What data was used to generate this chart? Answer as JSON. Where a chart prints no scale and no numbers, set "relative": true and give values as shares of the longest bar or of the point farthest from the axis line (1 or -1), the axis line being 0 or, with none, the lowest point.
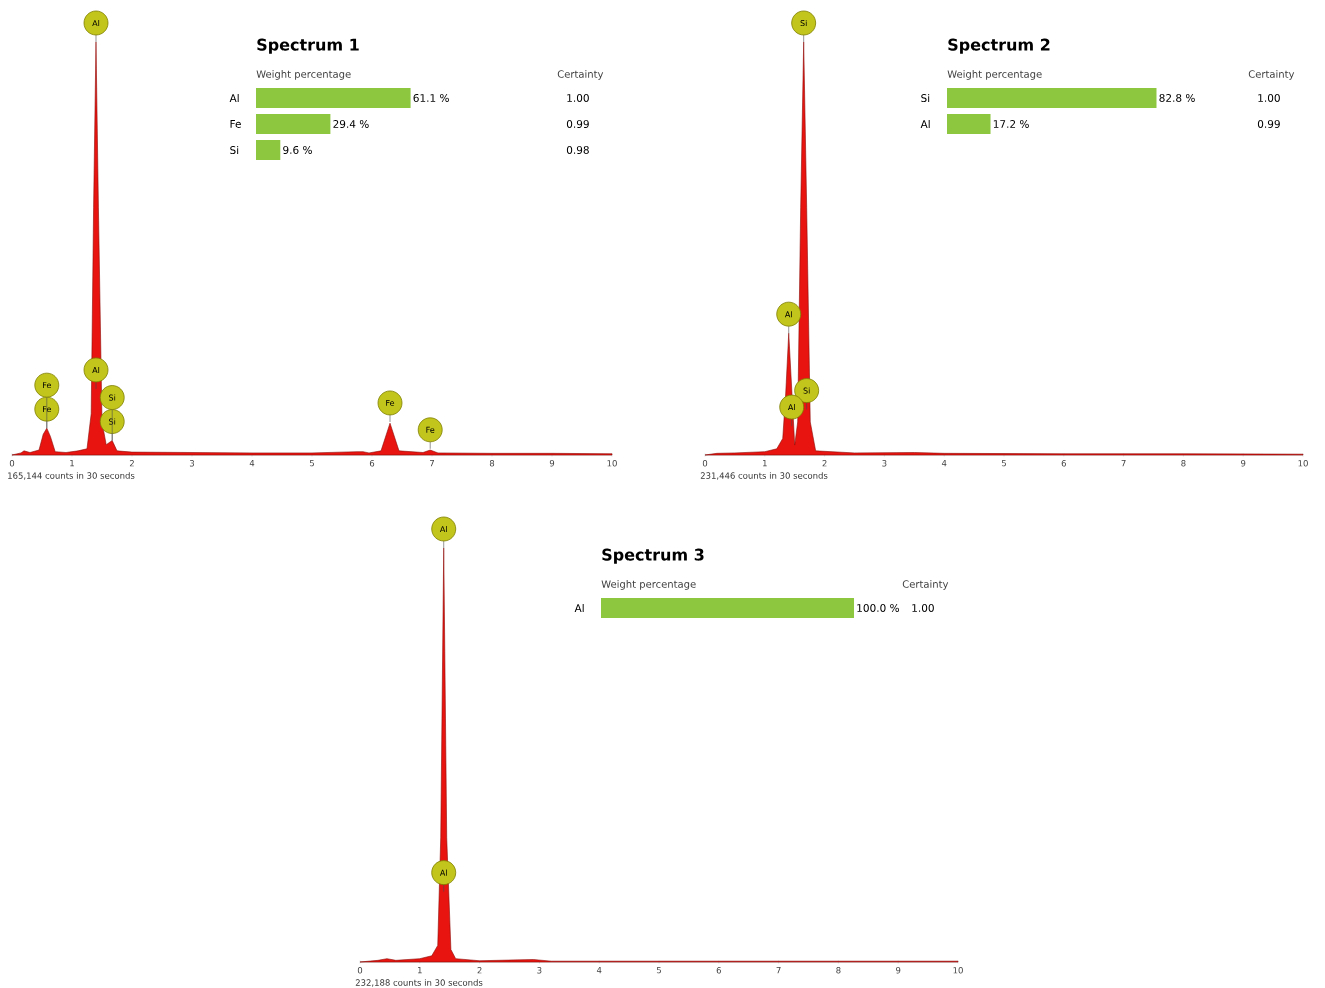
{
  "chart_data": [
    {
      "type": "area",
      "relative": true,
      "xlim": [
        0,
        10
      ],
      "xticks": [
        0,
        1,
        2,
        3,
        4,
        5,
        6,
        7,
        8,
        9,
        10
      ],
      "xlabel": "165,144 counts in 30 seconds",
      "color": "#e8140f",
      "x": [
        0,
        0.15,
        0.2,
        0.3,
        0.45,
        0.52,
        0.58,
        0.64,
        0.72,
        0.9,
        1.1,
        1.25,
        1.32,
        1.36,
        1.4,
        1.44,
        1.5,
        1.57,
        1.67,
        1.75,
        2.0,
        3,
        4,
        5,
        5.75,
        5.85,
        5.95,
        6.15,
        6.3,
        6.45,
        6.85,
        6.97,
        7.1,
        8,
        9,
        10
      ],
      "values": [
        0,
        0.005,
        0.01,
        0.006,
        0.012,
        0.05,
        0.065,
        0.045,
        0.008,
        0.006,
        0.01,
        0.015,
        0.1,
        0.6,
        1.0,
        0.6,
        0.08,
        0.025,
        0.035,
        0.01,
        0.007,
        0.006,
        0.005,
        0.005,
        0.008,
        0.008,
        0.005,
        0.01,
        0.077,
        0.01,
        0.006,
        0.012,
        0.005,
        0.004,
        0.004,
        0.003
      ],
      "annotations": [
        {
          "text": "Al",
          "x": 1.4,
          "y": 1.0
        },
        {
          "text": "Fe",
          "x": 0.58,
          "y": 0.065
        },
        {
          "text": "Fe",
          "x": 0.58,
          "y": 0.065
        },
        {
          "text": "Al",
          "x": 1.4,
          "y": 0.16
        },
        {
          "text": "Si",
          "x": 1.67,
          "y": 0.035
        },
        {
          "text": "Si",
          "x": 1.67,
          "y": 0.035
        },
        {
          "text": "Fe",
          "x": 6.3,
          "y": 0.08
        },
        {
          "text": "Fe",
          "x": 6.97,
          "y": 0.015
        }
      ]
    },
    {
      "type": "bar",
      "orientation": "horizontal",
      "title": "Spectrum 1",
      "xlabel": "Weight percentage",
      "categories": [
        "Al",
        "Fe",
        "Si"
      ],
      "values": [
        61.1,
        29.4,
        9.6
      ],
      "value_labels": [
        "61.1 %",
        "29.4 %",
        "9.6 %"
      ],
      "color": "#8dc63f",
      "tick_labels": "y",
      "annotations": [
        "Certainty",
        "1.00",
        "0.99",
        "0.98"
      ]
    },
    {
      "type": "area",
      "relative": true,
      "xlim": [
        0,
        10
      ],
      "xticks": [
        0,
        1,
        2,
        3,
        4,
        5,
        6,
        7,
        8,
        9,
        10
      ],
      "xlabel": "231,446 counts in 30 seconds",
      "color": "#e8140f",
      "x": [
        0,
        0.2,
        0.5,
        1.0,
        1.2,
        1.3,
        1.35,
        1.4,
        1.5,
        1.55,
        1.6,
        1.65,
        1.7,
        1.76,
        1.85,
        2.5,
        3.5,
        4,
        6,
        8,
        10
      ],
      "values": [
        0,
        0.004,
        0.005,
        0.008,
        0.015,
        0.04,
        0.15,
        0.295,
        0.024,
        0.08,
        0.6,
        1.0,
        0.6,
        0.08,
        0.01,
        0.005,
        0.006,
        0.004,
        0.003,
        0.003,
        0.002
      ],
      "annotations": [
        {
          "text": "Si",
          "x": 1.65,
          "y": 1.0
        },
        {
          "text": "Al",
          "x": 1.4,
          "y": 0.295
        },
        {
          "text": "Si",
          "x": 1.7,
          "y": 0.11
        },
        {
          "text": "Al",
          "x": 1.45,
          "y": 0.07
        }
      ]
    },
    {
      "type": "bar",
      "orientation": "horizontal",
      "title": "Spectrum 2",
      "xlabel": "Weight percentage",
      "categories": [
        "Si",
        "Al"
      ],
      "values": [
        82.8,
        17.2
      ],
      "value_labels": [
        "82.8 %",
        "17.2 %"
      ],
      "color": "#8dc63f",
      "tick_labels": "y",
      "annotations": [
        "Certainty",
        "1.00",
        "0.99"
      ]
    },
    {
      "type": "area",
      "relative": true,
      "xlim": [
        0,
        10
      ],
      "xticks": [
        0,
        1,
        2,
        3,
        4,
        5,
        6,
        7,
        8,
        9,
        10
      ],
      "xlabel": "232,188 counts in 30 seconds",
      "color": "#e8140f",
      "x": [
        0,
        0.3,
        0.45,
        0.6,
        1.0,
        1.2,
        1.3,
        1.35,
        1.4,
        1.45,
        1.52,
        1.6,
        2,
        2.9,
        3.2,
        6,
        10
      ],
      "values": [
        0,
        0.004,
        0.008,
        0.004,
        0.008,
        0.015,
        0.04,
        0.3,
        1.0,
        0.3,
        0.03,
        0.008,
        0.003,
        0.006,
        0.002,
        0.002,
        0.002
      ],
      "annotations": [
        {
          "text": "Al",
          "x": 1.4,
          "y": 1.0
        },
        {
          "text": "Al",
          "x": 1.4,
          "y": 0.17
        }
      ]
    },
    {
      "type": "bar",
      "orientation": "horizontal",
      "title": "Spectrum 3",
      "xlabel": "Weight percentage",
      "categories": [
        "Al"
      ],
      "values": [
        100.0
      ],
      "value_labels": [
        "100.0 %"
      ],
      "color": "#8dc63f",
      "tick_labels": "y",
      "annotations": [
        "Certainty",
        "1.00"
      ]
    }
  ]
}
